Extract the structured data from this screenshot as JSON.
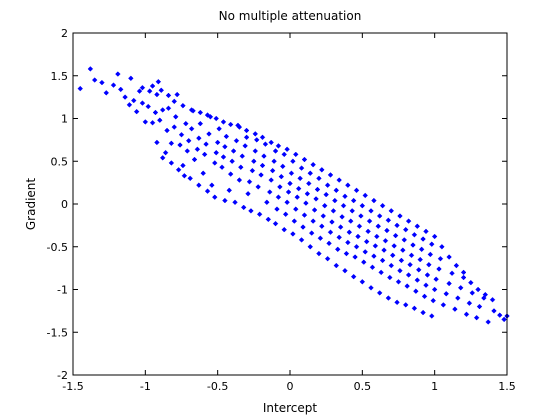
{
  "chart_data": {
    "type": "scatter",
    "title": "No multiple attenuation",
    "xlabel": "Intercept",
    "ylabel": "Gradient",
    "xlim": [
      -1.5,
      1.5
    ],
    "ylim": [
      -2,
      2
    ],
    "xticks": [
      -1.5,
      -1,
      -0.5,
      0,
      0.5,
      1,
      1.5
    ],
    "yticks": [
      -2,
      -1.5,
      -1,
      -0.5,
      0,
      0.5,
      1,
      1.5,
      2
    ],
    "xtick_labels": [
      "-1.5",
      "-1",
      "-0.5",
      "0",
      "0.5",
      "1",
      "1.5"
    ],
    "ytick_labels": [
      "-2",
      "-1.5",
      "-1",
      "-0.5",
      "0",
      "0.5",
      "1",
      "1.5",
      "2"
    ],
    "grid": false,
    "legend": "none",
    "marker": "diamond",
    "color": "#0000ff",
    "series": [
      {
        "values": [
          [
            -1.45,
            1.35
          ],
          [
            -1.38,
            1.58
          ],
          [
            -1.35,
            1.45
          ],
          [
            -1.3,
            1.42
          ],
          [
            -1.27,
            1.3
          ],
          [
            -1.22,
            1.39
          ],
          [
            -1.19,
            1.52
          ],
          [
            -1.17,
            1.34
          ],
          [
            -1.14,
            1.25
          ],
          [
            -1.11,
            1.16
          ],
          [
            -1.1,
            1.47
          ],
          [
            -1.08,
            1.21
          ],
          [
            -1.06,
            1.08
          ],
          [
            -1.04,
            1.32
          ],
          [
            -1.02,
            1.18
          ],
          [
            -1,
            0.96
          ],
          [
            -0.98,
            1.14
          ],
          [
            -0.97,
            1.32
          ],
          [
            -0.95,
            0.95
          ],
          [
            -0.93,
            1.07
          ],
          [
            -0.92,
            1.28
          ],
          [
            -0.91,
            1.43
          ],
          [
            -0.9,
            0.98
          ],
          [
            -0.88,
            1.1
          ],
          [
            -0.86,
            0.6
          ],
          [
            -0.85,
            0.86
          ],
          [
            -0.84,
            1.12
          ],
          [
            -0.82,
            0.71
          ],
          [
            -0.8,
            0.9
          ],
          [
            -0.79,
            1.02
          ],
          [
            -0.78,
            1.28
          ],
          [
            -0.76,
            0.69
          ],
          [
            -0.75,
            0.81
          ],
          [
            -0.74,
            0.45
          ],
          [
            -0.72,
            0.94
          ],
          [
            -0.71,
            0.62
          ],
          [
            -0.7,
            0.74
          ],
          [
            -0.68,
            0.88
          ],
          [
            -0.67,
            1.09
          ],
          [
            -0.66,
            0.52
          ],
          [
            -0.64,
            0.64
          ],
          [
            -0.63,
            0.77
          ],
          [
            -0.62,
            0.94
          ],
          [
            -0.6,
            0.36
          ],
          [
            -0.59,
            0.58
          ],
          [
            -0.58,
            0.7
          ],
          [
            -0.56,
            0.82
          ],
          [
            -0.55,
            1.02
          ],
          [
            -0.54,
            0.22
          ],
          [
            -0.52,
            0.48
          ],
          [
            -0.51,
            0.6
          ],
          [
            -0.5,
            0.72
          ],
          [
            -0.49,
            0.88
          ],
          [
            -0.47,
            0.43
          ],
          [
            -0.46,
            0.55
          ],
          [
            -0.45,
            0.67
          ],
          [
            -0.44,
            0.79
          ],
          [
            -0.42,
            0.16
          ],
          [
            -0.41,
            0.35
          ],
          [
            -0.4,
            0.5
          ],
          [
            -0.39,
            0.62
          ],
          [
            -0.37,
            0.74
          ],
          [
            -0.36,
            0.92
          ],
          [
            -0.35,
            0.28
          ],
          [
            -0.34,
            0.43
          ],
          [
            -0.33,
            0.56
          ],
          [
            -0.31,
            0.68
          ],
          [
            -0.3,
            0.78
          ],
          [
            -0.29,
            0.12
          ],
          [
            -0.28,
            0.26
          ],
          [
            -0.26,
            0.39
          ],
          [
            -0.25,
            0.5
          ],
          [
            -0.24,
            0.62
          ],
          [
            -0.23,
            0.75
          ],
          [
            -0.22,
            0.2
          ],
          [
            -0.2,
            0.34
          ],
          [
            -0.19,
            0.45
          ],
          [
            -0.18,
            0.56
          ],
          [
            -0.17,
            0.7
          ],
          [
            -0.16,
            0.02
          ],
          [
            -0.14,
            0.14
          ],
          [
            -0.13,
            0.28
          ],
          [
            -0.12,
            0.39
          ],
          [
            -0.11,
            0.5
          ],
          [
            -0.1,
            0.62
          ],
          [
            -0.09,
            -0.06
          ],
          [
            -0.08,
            0.08
          ],
          [
            -0.07,
            0.2
          ],
          [
            -0.06,
            0.32
          ],
          [
            -0.05,
            0.44
          ],
          [
            -0.04,
            0.58
          ],
          [
            -0.03,
            -0.12
          ],
          [
            -0.02,
            0.02
          ],
          [
            -0.01,
            0.14
          ],
          [
            0,
            0.24
          ],
          [
            0.01,
            0.36
          ],
          [
            0.02,
            0.5
          ],
          [
            0.03,
            -0.2
          ],
          [
            0.04,
            -0.06
          ],
          [
            0.05,
            0.08
          ],
          [
            0.06,
            0.18
          ],
          [
            0.07,
            0.3
          ],
          [
            0.08,
            0.42
          ],
          [
            0.09,
            -0.27
          ],
          [
            0.1,
            -0.13
          ],
          [
            0.11,
            0.01
          ],
          [
            0.12,
            0.12
          ],
          [
            0.13,
            0.24
          ],
          [
            0.14,
            0.36
          ],
          [
            0.15,
            -0.34
          ],
          [
            0.16,
            -0.2
          ],
          [
            0.17,
            -0.07
          ],
          [
            0.18,
            0.06
          ],
          [
            0.19,
            0.17
          ],
          [
            0.2,
            0.3
          ],
          [
            0.21,
            -0.4
          ],
          [
            0.22,
            -0.26
          ],
          [
            0.23,
            -0.14
          ],
          [
            0.24,
            -0.02
          ],
          [
            0.25,
            0.11
          ],
          [
            0.26,
            0.22
          ],
          [
            0.27,
            -0.46
          ],
          [
            0.28,
            -0.33
          ],
          [
            0.29,
            -0.21
          ],
          [
            0.3,
            -0.08
          ],
          [
            0.31,
            0.04
          ],
          [
            0.32,
            0.16
          ],
          [
            0.33,
            -0.53
          ],
          [
            0.34,
            -0.39
          ],
          [
            0.35,
            -0.27
          ],
          [
            0.36,
            -0.15
          ],
          [
            0.37,
            -0.02
          ],
          [
            0.38,
            0.09
          ],
          [
            0.39,
            -0.58
          ],
          [
            0.4,
            -0.45
          ],
          [
            0.41,
            -0.33
          ],
          [
            0.42,
            -0.2
          ],
          [
            0.43,
            -0.08
          ],
          [
            0.44,
            0.04
          ],
          [
            0.45,
            -0.62
          ],
          [
            0.46,
            -0.5
          ],
          [
            0.47,
            -0.38
          ],
          [
            0.48,
            -0.26
          ],
          [
            0.49,
            -0.14
          ],
          [
            0.5,
            -0.02
          ],
          [
            0.51,
            -0.68
          ],
          [
            0.52,
            -0.56
          ],
          [
            0.53,
            -0.44
          ],
          [
            0.54,
            -0.32
          ],
          [
            0.55,
            -0.2
          ],
          [
            0.56,
            -0.08
          ],
          [
            0.57,
            -0.74
          ],
          [
            0.58,
            -0.61
          ],
          [
            0.59,
            -0.49
          ],
          [
            0.6,
            -0.38
          ],
          [
            0.61,
            -0.26
          ],
          [
            0.62,
            -0.14
          ],
          [
            0.63,
            -0.8
          ],
          [
            0.64,
            -0.66
          ],
          [
            0.65,
            -0.54
          ],
          [
            0.66,
            -0.43
          ],
          [
            0.67,
            -0.31
          ],
          [
            0.68,
            -0.19
          ],
          [
            0.69,
            -0.86
          ],
          [
            0.7,
            -0.72
          ],
          [
            0.71,
            -0.6
          ],
          [
            0.72,
            -0.49
          ],
          [
            0.73,
            -0.37
          ],
          [
            0.74,
            -0.25
          ],
          [
            0.75,
            -0.91
          ],
          [
            0.76,
            -0.78
          ],
          [
            0.77,
            -0.66
          ],
          [
            0.78,
            -0.54
          ],
          [
            0.79,
            -0.42
          ],
          [
            0.8,
            -0.3
          ],
          [
            0.81,
            -0.96
          ],
          [
            0.82,
            -0.83
          ],
          [
            0.83,
            -0.71
          ],
          [
            0.84,
            -0.6
          ],
          [
            0.85,
            -0.48
          ],
          [
            0.86,
            -0.36
          ],
          [
            0.87,
            -1.02
          ],
          [
            0.88,
            -0.89
          ],
          [
            0.89,
            -0.77
          ],
          [
            0.9,
            -0.65
          ],
          [
            0.91,
            -0.53
          ],
          [
            0.92,
            -0.41
          ],
          [
            0.93,
            -1.08
          ],
          [
            0.94,
            -0.95
          ],
          [
            0.95,
            -0.83
          ],
          [
            0.96,
            -0.71
          ],
          [
            0.97,
            -0.59
          ],
          [
            0.98,
            -0.47
          ],
          [
            0.99,
            -1.13
          ],
          [
            1,
            -1
          ],
          [
            1.01,
            -0.88
          ],
          [
            1.03,
            -0.76
          ],
          [
            1.04,
            -0.64
          ],
          [
            1.06,
            -1.18
          ],
          [
            1.08,
            -1.05
          ],
          [
            1.1,
            -0.93
          ],
          [
            1.12,
            -0.81
          ],
          [
            1.14,
            -1.23
          ],
          [
            1.16,
            -1.1
          ],
          [
            1.18,
            -0.98
          ],
          [
            1.2,
            -0.86
          ],
          [
            1.22,
            -1.29
          ],
          [
            1.24,
            -1.16
          ],
          [
            1.26,
            -1.04
          ],
          [
            1.29,
            -1.33
          ],
          [
            1.31,
            -1.2
          ],
          [
            1.34,
            -1.1
          ],
          [
            1.37,
            -1.38
          ],
          [
            1.41,
            -1.25
          ],
          [
            1.45,
            -1.3
          ],
          [
            1.48,
            -1.35
          ],
          [
            1.5,
            -1.31
          ],
          [
            -0.92,
            0.72
          ],
          [
            -0.88,
            0.54
          ],
          [
            -0.82,
            0.48
          ],
          [
            -0.77,
            0.4
          ],
          [
            -0.73,
            0.33
          ],
          [
            -0.69,
            0.3
          ],
          [
            -0.63,
            0.22
          ],
          [
            -0.57,
            0.15
          ],
          [
            -0.52,
            0.08
          ],
          [
            -0.45,
            0.04
          ],
          [
            -0.38,
            0.02
          ],
          [
            -0.32,
            -0.04
          ],
          [
            -0.27,
            -0.08
          ],
          [
            -0.21,
            -0.12
          ],
          [
            -0.15,
            -0.18
          ],
          [
            -0.1,
            -0.23
          ],
          [
            -0.04,
            -0.3
          ],
          [
            0.02,
            -0.35
          ],
          [
            0.08,
            -0.42
          ],
          [
            0.14,
            -0.5
          ],
          [
            0.2,
            -0.58
          ],
          [
            0.26,
            -0.64
          ],
          [
            0.32,
            -0.72
          ],
          [
            0.38,
            -0.78
          ],
          [
            0.44,
            -0.85
          ],
          [
            0.5,
            -0.91
          ],
          [
            0.56,
            -0.98
          ],
          [
            0.62,
            -1.04
          ],
          [
            0.68,
            -1.1
          ],
          [
            0.74,
            -1.15
          ],
          [
            0.8,
            -1.18
          ],
          [
            0.86,
            -1.22
          ],
          [
            0.92,
            -1.27
          ],
          [
            0.98,
            -1.31
          ],
          [
            -1.02,
            1.36
          ],
          [
            -0.95,
            1.38
          ],
          [
            -0.89,
            1.33
          ],
          [
            -0.84,
            1.27
          ],
          [
            -0.8,
            1.2
          ],
          [
            -0.74,
            1.15
          ],
          [
            -0.68,
            1.1
          ],
          [
            -0.62,
            1.07
          ],
          [
            -0.57,
            1.04
          ],
          [
            -0.51,
            1
          ],
          [
            -0.46,
            0.96
          ],
          [
            -0.41,
            0.93
          ],
          [
            -0.35,
            0.9
          ],
          [
            -0.3,
            0.86
          ],
          [
            -0.24,
            0.82
          ],
          [
            -0.19,
            0.78
          ],
          [
            -0.13,
            0.72
          ],
          [
            -0.08,
            0.68
          ],
          [
            -0.02,
            0.64
          ],
          [
            0.04,
            0.58
          ],
          [
            0.1,
            0.52
          ],
          [
            0.16,
            0.46
          ],
          [
            0.22,
            0.4
          ],
          [
            0.28,
            0.34
          ],
          [
            0.34,
            0.28
          ],
          [
            0.4,
            0.22
          ],
          [
            0.46,
            0.16
          ],
          [
            0.52,
            0.1
          ],
          [
            0.58,
            0.04
          ],
          [
            0.64,
            -0.02
          ],
          [
            0.7,
            -0.08
          ],
          [
            0.76,
            -0.14
          ],
          [
            0.82,
            -0.2
          ],
          [
            0.88,
            -0.26
          ],
          [
            0.94,
            -0.32
          ],
          [
            1,
            -0.38
          ],
          [
            1.05,
            -0.5
          ],
          [
            1.1,
            -0.62
          ],
          [
            1.15,
            -0.72
          ],
          [
            1.2,
            -0.8
          ],
          [
            1.25,
            -0.92
          ],
          [
            1.3,
            -1
          ],
          [
            1.35,
            -1.06
          ],
          [
            1.4,
            -1.12
          ]
        ]
      }
    ]
  }
}
